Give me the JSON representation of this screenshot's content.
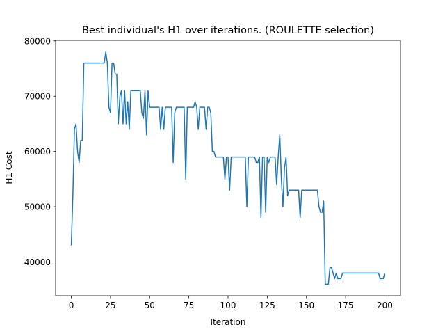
{
  "chart_data": {
    "type": "line",
    "title": "Best individual's H1 over iterations. (ROULETTE selection)",
    "x_label": "Iteration",
    "y_label": "H1 Cost",
    "xlim": [
      -10,
      210
    ],
    "xticks": [
      0,
      25,
      50,
      75,
      100,
      125,
      150,
      175,
      200
    ],
    "ylim": [
      33900,
      80100
    ],
    "yticks": [
      40000,
      50000,
      60000,
      70000,
      80000
    ],
    "grid": false,
    "x": [
      0,
      1,
      2,
      3,
      4,
      5,
      6,
      7,
      8,
      9,
      10,
      11,
      12,
      13,
      14,
      15,
      16,
      17,
      18,
      19,
      20,
      21,
      22,
      23,
      24,
      25,
      26,
      27,
      28,
      29,
      30,
      31,
      32,
      33,
      34,
      35,
      36,
      37,
      38,
      39,
      40,
      41,
      42,
      43,
      44,
      45,
      46,
      47,
      48,
      49,
      50,
      51,
      52,
      53,
      54,
      55,
      56,
      57,
      58,
      59,
      60,
      61,
      62,
      63,
      64,
      65,
      66,
      67,
      68,
      69,
      70,
      71,
      72,
      73,
      74,
      75,
      76,
      77,
      78,
      79,
      80,
      81,
      82,
      83,
      84,
      85,
      86,
      87,
      88,
      89,
      90,
      91,
      92,
      93,
      94,
      95,
      96,
      97,
      98,
      99,
      100,
      101,
      102,
      103,
      104,
      105,
      106,
      107,
      108,
      109,
      110,
      111,
      112,
      113,
      114,
      115,
      116,
      117,
      118,
      119,
      120,
      121,
      122,
      123,
      124,
      125,
      126,
      127,
      128,
      129,
      130,
      131,
      132,
      133,
      134,
      135,
      136,
      137,
      138,
      139,
      140,
      141,
      142,
      143,
      144,
      145,
      146,
      147,
      148,
      149,
      150,
      151,
      152,
      153,
      154,
      155,
      156,
      157,
      158,
      159,
      160,
      161,
      162,
      163,
      164,
      165,
      166,
      167,
      168,
      169,
      170,
      171,
      172,
      173,
      174,
      175,
      176,
      177,
      178,
      179,
      180,
      181,
      182,
      183,
      184,
      185,
      186,
      187,
      188,
      189,
      190,
      191,
      192,
      193,
      194,
      195,
      196,
      197,
      198,
      199,
      200
    ],
    "series": [
      {
        "color": "#1f77b4",
        "values": [
          43000,
          52000,
          64000,
          65000,
          60000,
          58000,
          62000,
          62000,
          76000,
          76000,
          76000,
          76000,
          76000,
          76000,
          76000,
          76000,
          76000,
          76000,
          76000,
          76000,
          76000,
          76000,
          78000,
          76000,
          68000,
          67000,
          76000,
          76000,
          74000,
          74000,
          65000,
          70000,
          71000,
          65000,
          71000,
          65000,
          69000,
          64000,
          71000,
          71000,
          71000,
          71000,
          71000,
          71000,
          71000,
          67000,
          66000,
          71000,
          63000,
          71000,
          68000,
          68000,
          68000,
          68000,
          68000,
          68000,
          68000,
          64000,
          68000,
          64000,
          68000,
          68000,
          68000,
          68000,
          68000,
          58000,
          67000,
          68000,
          68000,
          68000,
          68000,
          68000,
          68000,
          55000,
          68000,
          68000,
          68000,
          68000,
          68000,
          69000,
          68000,
          64000,
          68000,
          68000,
          68000,
          68000,
          64000,
          68000,
          68000,
          67000,
          60000,
          60000,
          59000,
          59000,
          59000,
          59000,
          59000,
          59000,
          55000,
          59000,
          59000,
          53000,
          59000,
          59000,
          59000,
          59000,
          59000,
          59000,
          59000,
          59000,
          59000,
          59000,
          50000,
          59000,
          59000,
          59000,
          59000,
          59000,
          58000,
          58000,
          59000,
          48000,
          59000,
          59000,
          49000,
          59000,
          58000,
          59000,
          59000,
          59000,
          59000,
          54000,
          59000,
          63000,
          55000,
          50000,
          57000,
          59000,
          52000,
          53000,
          53000,
          53000,
          53000,
          53000,
          53000,
          53000,
          48000,
          53000,
          53000,
          53000,
          53000,
          53000,
          53000,
          53000,
          53000,
          53000,
          53000,
          53000,
          50000,
          49000,
          49000,
          51000,
          36000,
          36000,
          36000,
          39000,
          39000,
          38000,
          37000,
          38000,
          37000,
          37000,
          37000,
          38000,
          38000,
          38000,
          38000,
          38000,
          38000,
          38000,
          38000,
          38000,
          38000,
          38000,
          38000,
          38000,
          38000,
          38000,
          38000,
          38000,
          38000,
          38000,
          38000,
          38000,
          38000,
          38000,
          38000,
          37000,
          37000,
          37000,
          38000
        ]
      }
    ]
  }
}
